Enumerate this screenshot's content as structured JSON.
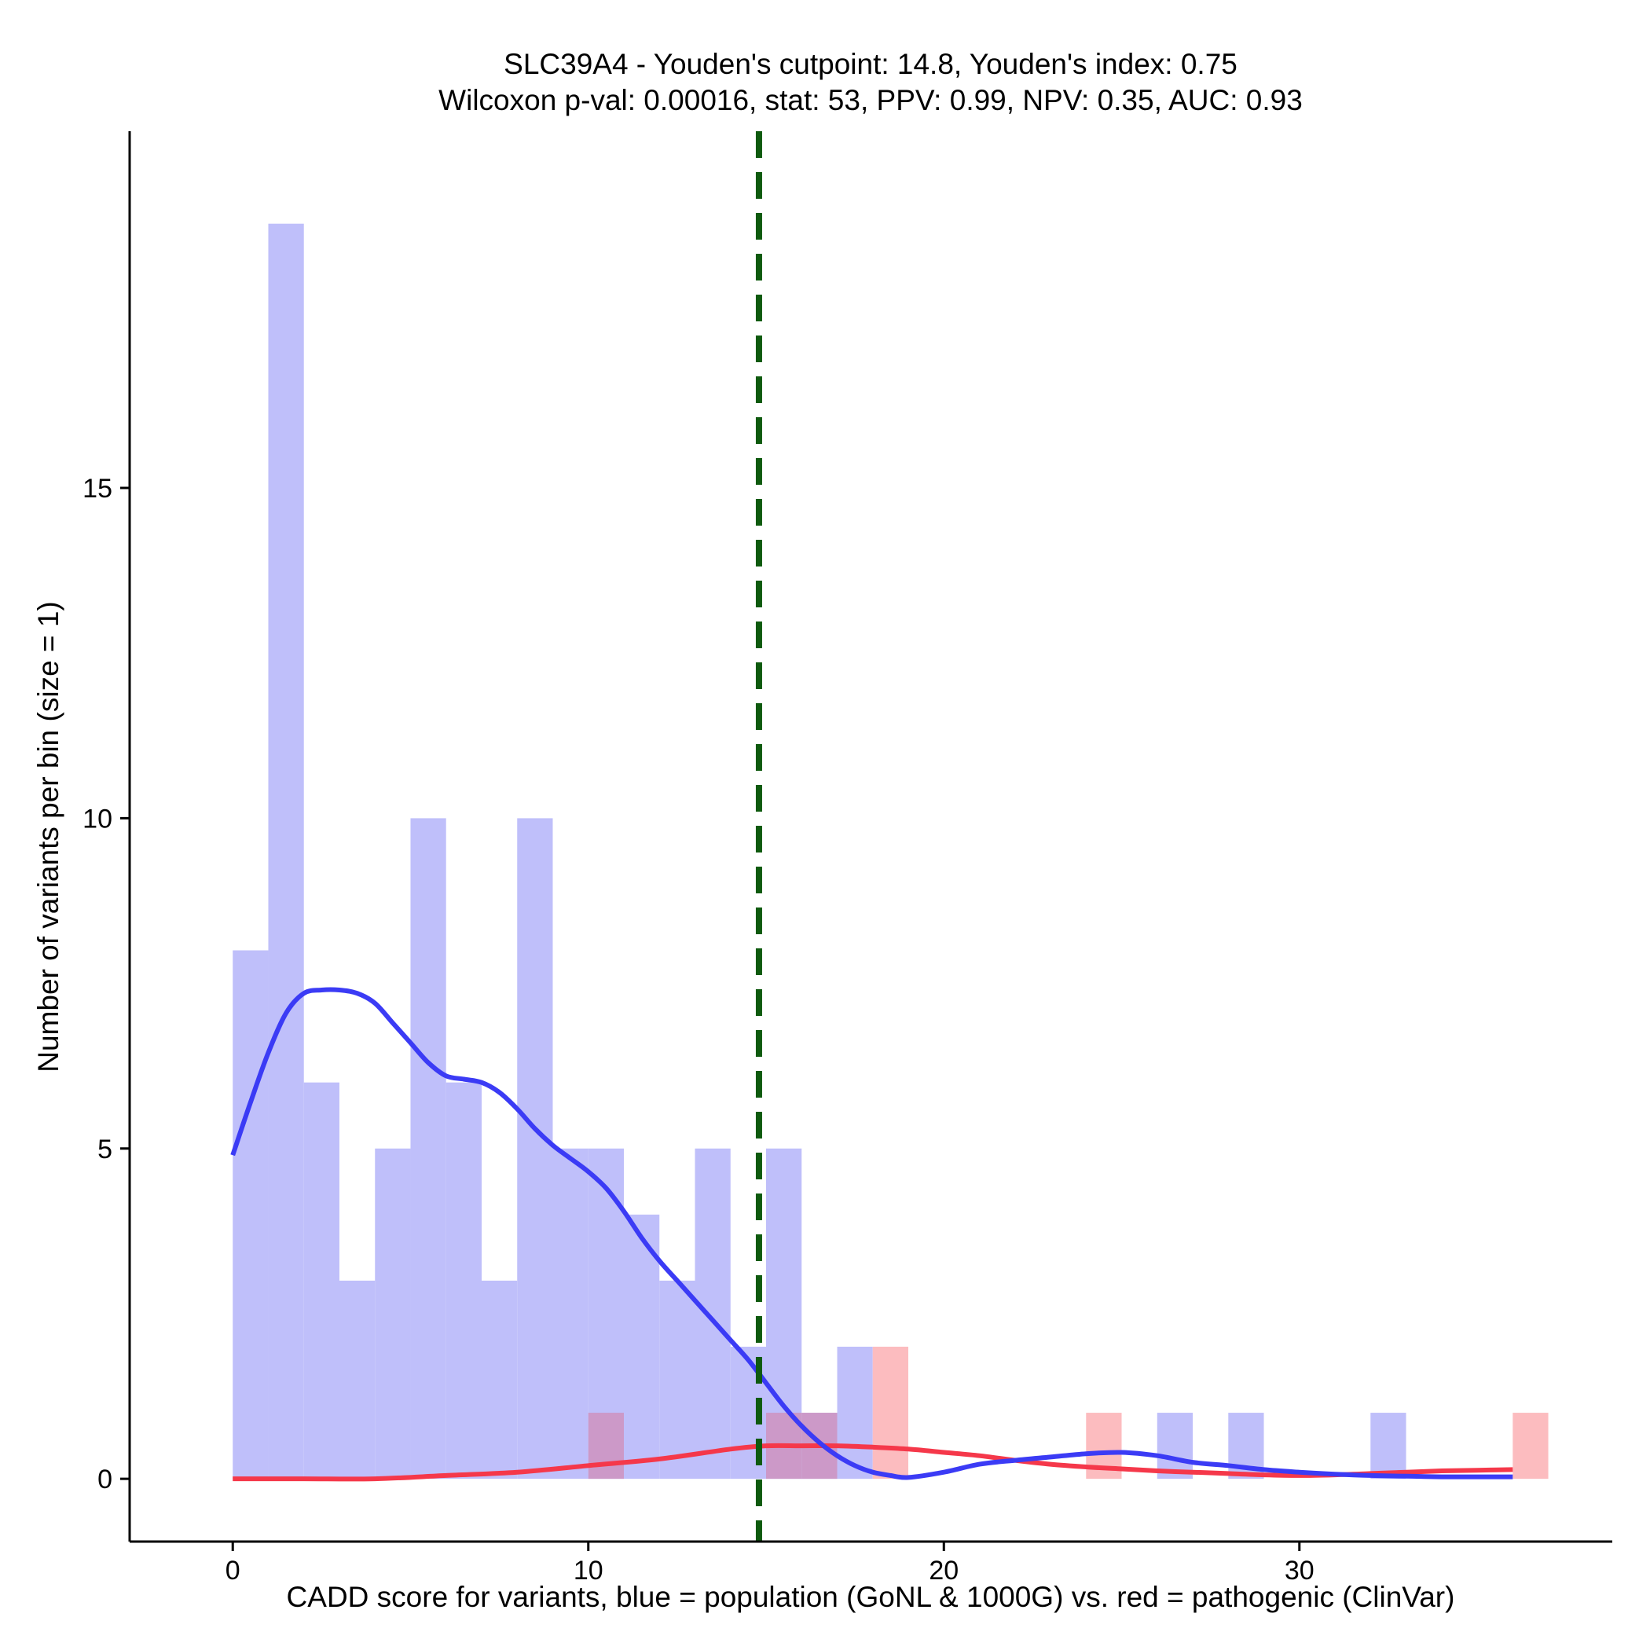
{
  "chart_data": {
    "type": "histogram",
    "title_line1": "SLC39A4 - Youden's cutpoint: 14.8, Youden's index: 0.75",
    "title_line2": "Wilcoxon p-val: 0.00016, stat: 53, PPV: 0.99, NPV: 0.35, AUC: 0.93",
    "xlabel": "CADD score for variants, blue = population (GoNL & 1000G) vs. red = pathogenic (ClinVar)",
    "ylabel": "Number of variants per bin (size = 1)",
    "xlim": [
      -2.9,
      38.8
    ],
    "ylim": [
      -0.95,
      20.4
    ],
    "x_ticks": [
      0,
      10,
      20,
      30
    ],
    "y_ticks": [
      0,
      5,
      10,
      15
    ],
    "bin_width": 1,
    "cutpoint": 14.8,
    "colors": {
      "population_bar": "#bfbffa",
      "pathogenic_bar": "#fcbcbf",
      "overlap_bar": "#cc99c8",
      "population_line": "#3b3bf5",
      "pathogenic_line": "#f5384a",
      "cutpoint_line": "#0e5a0e"
    },
    "series": [
      {
        "name": "population (GoNL & 1000G)",
        "bins": [
          {
            "x0": 0,
            "count": 8
          },
          {
            "x0": 1,
            "count": 19
          },
          {
            "x0": 2,
            "count": 6
          },
          {
            "x0": 3,
            "count": 3
          },
          {
            "x0": 4,
            "count": 5
          },
          {
            "x0": 5,
            "count": 10
          },
          {
            "x0": 6,
            "count": 6
          },
          {
            "x0": 7,
            "count": 3
          },
          {
            "x0": 8,
            "count": 10
          },
          {
            "x0": 9,
            "count": 5
          },
          {
            "x0": 10,
            "count": 5
          },
          {
            "x0": 11,
            "count": 4
          },
          {
            "x0": 12,
            "count": 3
          },
          {
            "x0": 13,
            "count": 5
          },
          {
            "x0": 14,
            "count": 2
          },
          {
            "x0": 15,
            "count": 5
          },
          {
            "x0": 16,
            "count": 1
          },
          {
            "x0": 17,
            "count": 2
          },
          {
            "x0": 26,
            "count": 1
          },
          {
            "x0": 28,
            "count": 1
          },
          {
            "x0": 32,
            "count": 1
          }
        ],
        "density_curve": [
          [
            0,
            4.9
          ],
          [
            0.5,
            5.7
          ],
          [
            1,
            6.45
          ],
          [
            1.5,
            7.05
          ],
          [
            2,
            7.35
          ],
          [
            2.5,
            7.4
          ],
          [
            3,
            7.4
          ],
          [
            3.5,
            7.35
          ],
          [
            4,
            7.2
          ],
          [
            4.5,
            6.9
          ],
          [
            5,
            6.6
          ],
          [
            5.5,
            6.3
          ],
          [
            6,
            6.1
          ],
          [
            6.5,
            6.05
          ],
          [
            7,
            6.0
          ],
          [
            7.5,
            5.85
          ],
          [
            8,
            5.6
          ],
          [
            8.5,
            5.3
          ],
          [
            9,
            5.05
          ],
          [
            9.5,
            4.85
          ],
          [
            10,
            4.65
          ],
          [
            10.5,
            4.4
          ],
          [
            11,
            4.05
          ],
          [
            11.5,
            3.65
          ],
          [
            12,
            3.3
          ],
          [
            12.5,
            3.0
          ],
          [
            13,
            2.7
          ],
          [
            13.5,
            2.4
          ],
          [
            14,
            2.1
          ],
          [
            14.5,
            1.8
          ],
          [
            15,
            1.45
          ],
          [
            15.5,
            1.1
          ],
          [
            16,
            0.8
          ],
          [
            16.5,
            0.55
          ],
          [
            17,
            0.35
          ],
          [
            17.5,
            0.2
          ],
          [
            18,
            0.1
          ],
          [
            18.5,
            0.05
          ],
          [
            19,
            0.02
          ],
          [
            20,
            0.1
          ],
          [
            21,
            0.22
          ],
          [
            22,
            0.28
          ],
          [
            23,
            0.33
          ],
          [
            24,
            0.38
          ],
          [
            25,
            0.4
          ],
          [
            26,
            0.35
          ],
          [
            27,
            0.25
          ],
          [
            28,
            0.2
          ],
          [
            29,
            0.14
          ],
          [
            30,
            0.1
          ],
          [
            31,
            0.07
          ],
          [
            32,
            0.05
          ],
          [
            33,
            0.04
          ],
          [
            34,
            0.03
          ],
          [
            35,
            0.03
          ],
          [
            36,
            0.03
          ]
        ]
      },
      {
        "name": "pathogenic (ClinVar)",
        "bins": [
          {
            "x0": 10,
            "count": 1
          },
          {
            "x0": 15,
            "count": 1
          },
          {
            "x0": 16,
            "count": 1
          },
          {
            "x0": 18,
            "count": 2
          },
          {
            "x0": 24,
            "count": 1
          },
          {
            "x0": 36,
            "count": 1
          }
        ],
        "density_curve": [
          [
            0,
            0.0
          ],
          [
            2,
            0.0
          ],
          [
            4,
            0.0
          ],
          [
            6,
            0.05
          ],
          [
            8,
            0.1
          ],
          [
            10,
            0.2
          ],
          [
            12,
            0.3
          ],
          [
            14,
            0.45
          ],
          [
            15,
            0.5
          ],
          [
            16,
            0.5
          ],
          [
            17,
            0.5
          ],
          [
            18,
            0.48
          ],
          [
            19,
            0.45
          ],
          [
            20,
            0.4
          ],
          [
            21,
            0.35
          ],
          [
            22,
            0.28
          ],
          [
            23,
            0.22
          ],
          [
            24,
            0.18
          ],
          [
            25,
            0.15
          ],
          [
            26,
            0.12
          ],
          [
            27,
            0.1
          ],
          [
            28,
            0.08
          ],
          [
            29,
            0.06
          ],
          [
            30,
            0.05
          ],
          [
            31,
            0.06
          ],
          [
            32,
            0.08
          ],
          [
            33,
            0.1
          ],
          [
            34,
            0.12
          ],
          [
            35,
            0.13
          ],
          [
            36,
            0.14
          ]
        ]
      }
    ]
  }
}
